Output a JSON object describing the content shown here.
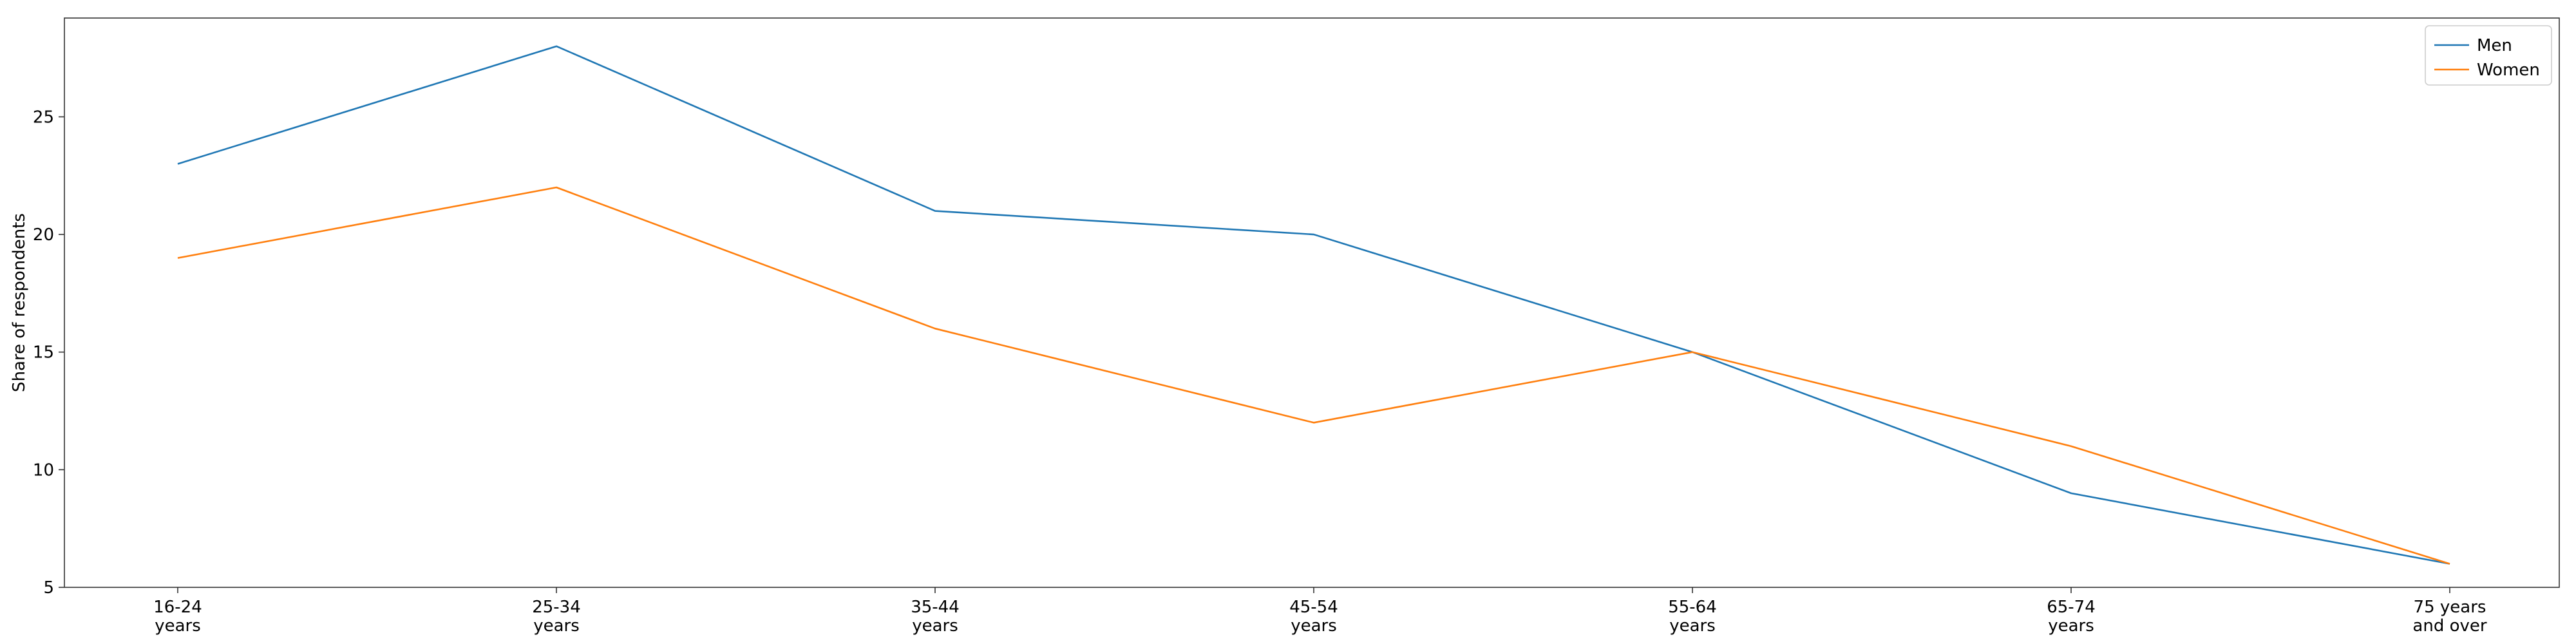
{
  "chart_data": {
    "type": "line",
    "categories": [
      [
        "16-24",
        "years"
      ],
      [
        "25-34",
        "years"
      ],
      [
        "35-44",
        "years"
      ],
      [
        "45-54",
        "years"
      ],
      [
        "55-64",
        "years"
      ],
      [
        "65-74",
        "years"
      ],
      [
        "75 years",
        "and over"
      ]
    ],
    "series": [
      {
        "name": "Men",
        "values": [
          23,
          28,
          21,
          20,
          15,
          9,
          6
        ],
        "color": "#1f77b4"
      },
      {
        "name": "Women",
        "values": [
          19,
          22,
          16,
          12,
          15,
          11,
          6
        ],
        "color": "#ff7f0e"
      }
    ],
    "title": "",
    "xlabel": "",
    "ylabel": "Share of respondents",
    "ylim": [
      5,
      29.2
    ],
    "yticks": [
      5,
      10,
      15,
      20,
      25
    ],
    "grid": false,
    "legend_position": "top-right"
  }
}
